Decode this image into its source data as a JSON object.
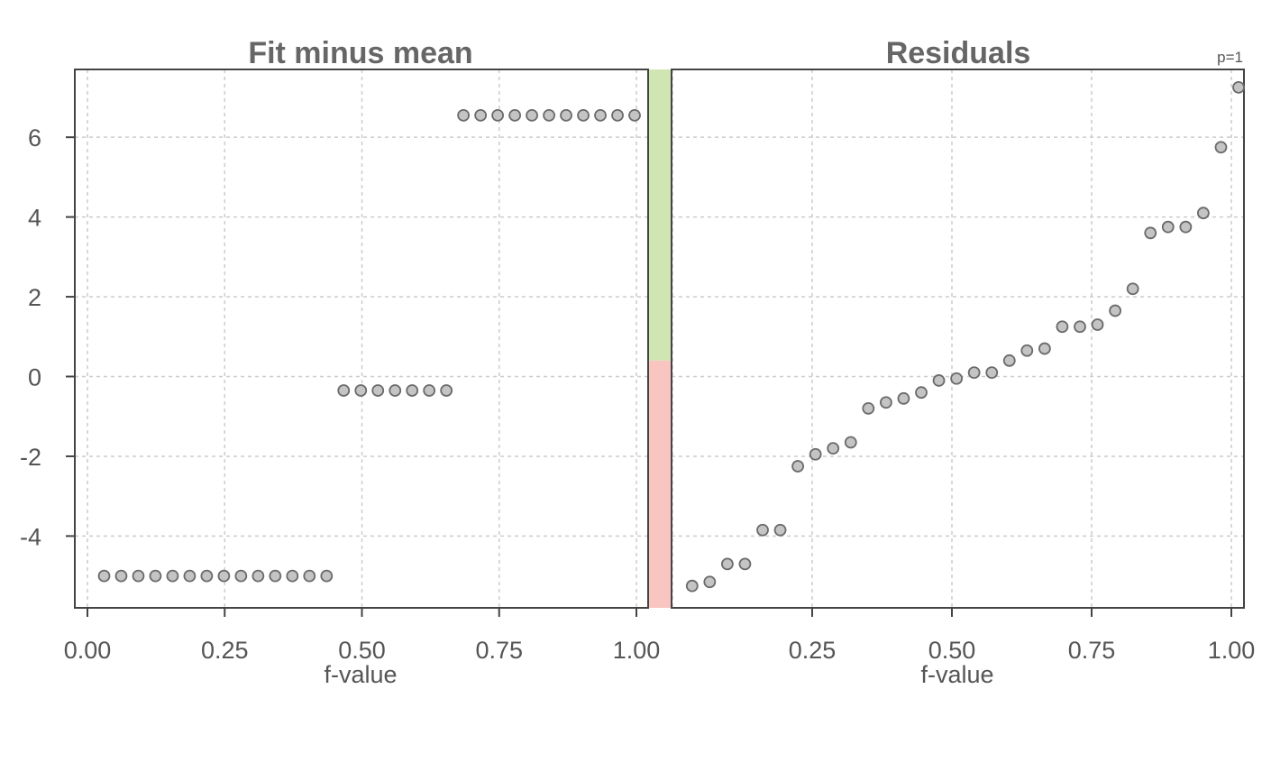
{
  "chart_data": {
    "type": "scatter",
    "layout": "rfs-spread-plot",
    "panels": [
      {
        "title": "Fit minus mean",
        "xlabel": "f-value",
        "xlim": [
          0,
          1
        ],
        "xticks": [
          "0.00",
          "0.25",
          "0.50",
          "0.75",
          "1.00"
        ],
        "series": [
          {
            "x": [
              0.0159,
              0.0476,
              0.0794,
              0.1111,
              0.1429,
              0.1746,
              0.2063,
              0.2381,
              0.2698,
              0.3016,
              0.3333,
              0.3651,
              0.3968,
              0.4286,
              0.4603,
              0.4921,
              0.5238,
              0.5556,
              0.5873,
              0.619,
              0.6508,
              0.6825,
              0.7143,
              0.746,
              0.7778,
              0.8095,
              0.8413,
              0.873,
              0.9048,
              0.9365,
              0.9683,
              1.0
            ],
            "y": [
              -5.0,
              -5.0,
              -5.0,
              -5.0,
              -5.0,
              -5.0,
              -5.0,
              -5.0,
              -5.0,
              -5.0,
              -5.0,
              -5.0,
              -5.0,
              -5.0,
              -0.35,
              -0.35,
              -0.35,
              -0.35,
              -0.35,
              -0.35,
              -0.35,
              6.55,
              6.55,
              6.55,
              6.55,
              6.55,
              6.55,
              6.55,
              6.55,
              6.55,
              6.55,
              6.55
            ]
          }
        ]
      },
      {
        "title": "Residuals",
        "xlabel": "f-value",
        "xlim": [
          0,
          1
        ],
        "xticks": [
          "0.25",
          "0.50",
          "0.75",
          "1.00"
        ],
        "series": [
          {
            "x": [
              0.0159,
              0.0476,
              0.0794,
              0.1111,
              0.1429,
              0.1746,
              0.2063,
              0.2381,
              0.2698,
              0.3016,
              0.3333,
              0.3651,
              0.3968,
              0.4286,
              0.4603,
              0.4921,
              0.5238,
              0.5556,
              0.5873,
              0.619,
              0.6508,
              0.6825,
              0.7143,
              0.746,
              0.7778,
              0.8095,
              0.8413,
              0.873,
              0.9048,
              0.9365,
              0.9683,
              1.0
            ],
            "y": [
              -5.25,
              -5.15,
              -4.7,
              -4.7,
              -3.85,
              -3.85,
              -2.25,
              -1.95,
              -1.8,
              -1.65,
              -0.8,
              -0.65,
              -0.55,
              -0.4,
              -0.1,
              -0.05,
              0.1,
              0.1,
              0.4,
              0.65,
              0.7,
              1.25,
              1.25,
              1.3,
              1.65,
              2.2,
              3.6,
              3.75,
              3.75,
              4.1,
              5.75,
              7.25
            ]
          }
        ]
      }
    ],
    "yaxis": {
      "ylim": [
        -5.8,
        7.7
      ],
      "yticks": [
        6,
        4,
        2,
        0,
        -2,
        -4
      ],
      "ytick_labels": [
        "6",
        "4",
        "2",
        "0",
        "-2",
        "-4"
      ]
    },
    "spread_bar": {
      "split_value": 0.4,
      "upper_color": "#cfe6b3",
      "lower_color": "#f9c5c1"
    },
    "annotation": "p=1",
    "grid": true,
    "marker_color": "#c4c4c4",
    "marker_edge_color": "#6b6b6b"
  }
}
